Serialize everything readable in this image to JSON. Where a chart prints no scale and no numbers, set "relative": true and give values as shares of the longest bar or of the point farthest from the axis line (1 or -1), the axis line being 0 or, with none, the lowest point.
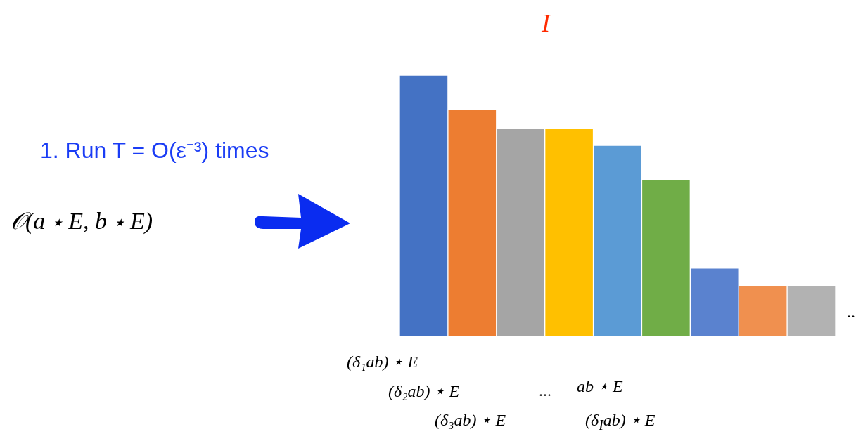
{
  "chart_data": {
    "type": "bar",
    "title": "I",
    "relative": true,
    "categories": [
      null,
      null,
      null,
      null,
      null,
      null,
      null,
      null,
      null
    ],
    "values": [
      1,
      0.869,
      0.796,
      0.796,
      0.73,
      0.599,
      0.259,
      0.193,
      0.193
    ],
    "colors": [
      "#4472c4",
      "#ed7d31",
      "#a5a5a5",
      "#ffc000",
      "#5b9bd5",
      "#70ad47",
      "#5a82cf",
      "#f0904f",
      "#b2b2b2"
    ],
    "grid": false,
    "legend": false,
    "annotations": [
      "1. Run T = O(ε⁻³) times",
      "𝒪(a ⋆ E, b ⋆ E)",
      "(δ₁ab) ⋆ E",
      "(δ₂ab) ⋆ E",
      "...",
      "ab ⋆ E",
      "(δ₃ab) ⋆ E",
      "(δ$_{I}$ab) ⋆ E",
      ".."
    ]
  }
}
